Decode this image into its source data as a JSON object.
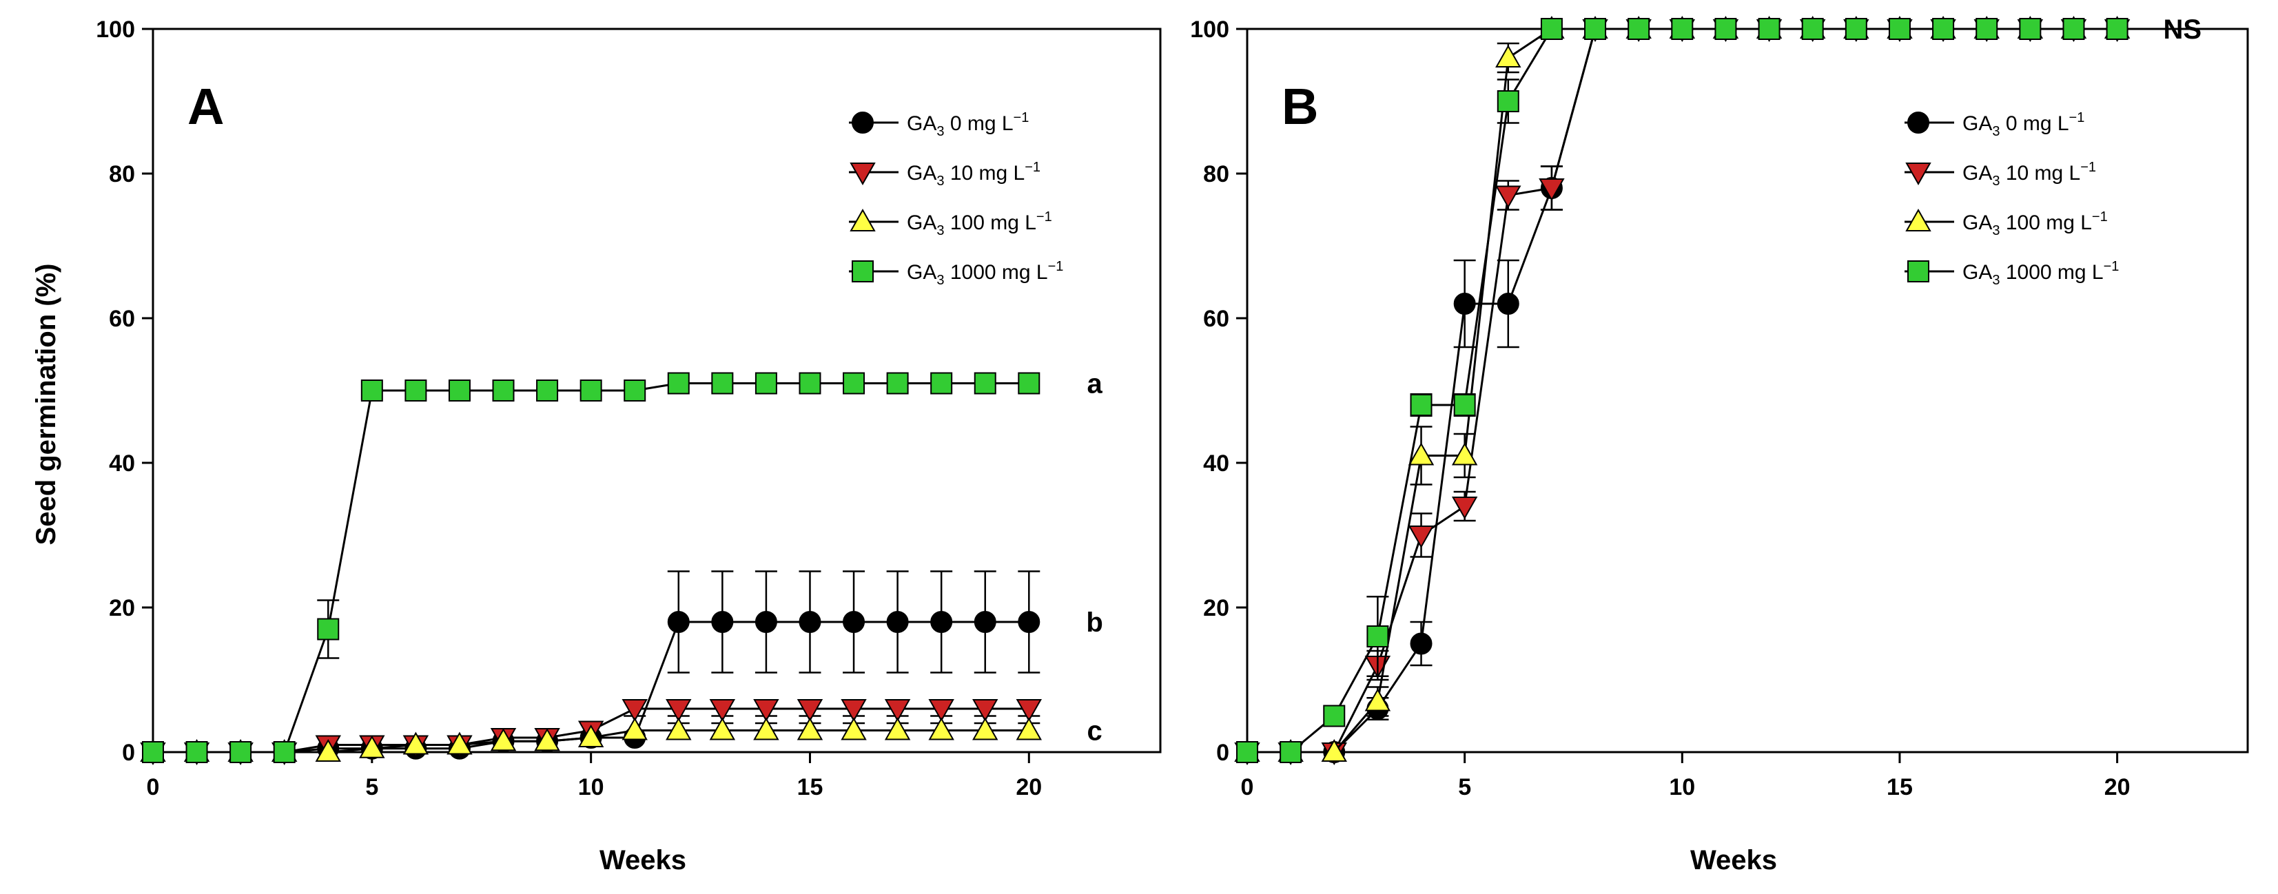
{
  "chart_data": [
    {
      "type": "line",
      "panel_label": "A",
      "xlabel": "Weeks",
      "ylabel": "Seed germination (%)",
      "xlim": [
        0,
        23
      ],
      "ylim": [
        0,
        100
      ],
      "xticks": [
        0,
        5,
        10,
        15,
        20
      ],
      "yticks": [
        0,
        20,
        40,
        60,
        80,
        100
      ],
      "x": [
        0,
        1,
        2,
        3,
        4,
        5,
        6,
        7,
        8,
        9,
        10,
        11,
        12,
        13,
        14,
        15,
        16,
        17,
        18,
        19,
        20
      ],
      "series": [
        {
          "name": "GA3 0",
          "legend": {
            "prefix": "GA",
            "sub": "3",
            "dose": "0 mg L",
            "sup": "−1"
          },
          "marker": "circle",
          "color": "#000000",
          "values": [
            0,
            0,
            0,
            0,
            0.5,
            0.5,
            0.5,
            0.5,
            1.5,
            1.5,
            2,
            2,
            18,
            18,
            18,
            18,
            18,
            18,
            18,
            18,
            18
          ],
          "errors": [
            0,
            0,
            0,
            0,
            0,
            0,
            0,
            0,
            0,
            0,
            0,
            0,
            7,
            7,
            7,
            7,
            7,
            7,
            7,
            7,
            7
          ]
        },
        {
          "name": "GA3 10",
          "legend": {
            "prefix": "GA",
            "sub": "3",
            "dose": "10 mg L",
            "sup": "−1"
          },
          "marker": "triangle-down",
          "color": "#cc2222",
          "values": [
            0,
            0,
            0,
            0,
            1,
            1,
            1,
            1,
            2,
            2,
            3,
            6,
            6,
            6,
            6,
            6,
            6,
            6,
            6,
            6,
            6
          ],
          "errors": [
            0,
            0,
            0,
            0,
            0,
            0,
            0,
            0,
            0,
            0,
            0,
            1,
            1,
            1,
            1,
            1,
            1,
            1,
            1,
            1,
            1
          ]
        },
        {
          "name": "GA3 100",
          "legend": {
            "prefix": "GA",
            "sub": "3",
            "dose": "100 mg L",
            "sup": "−1"
          },
          "marker": "triangle-up",
          "color": "#ffff44",
          "values": [
            0,
            0,
            0,
            0,
            0,
            0.5,
            1,
            1,
            1.5,
            1.5,
            2,
            3,
            3,
            3,
            3,
            3,
            3,
            3,
            3,
            3,
            3
          ],
          "errors": [
            0,
            0,
            0,
            0,
            0,
            0,
            0,
            0,
            0,
            0,
            0,
            0,
            1,
            1,
            1,
            1,
            1,
            1,
            1,
            1,
            1
          ]
        },
        {
          "name": "GA3 1000",
          "legend": {
            "prefix": "GA",
            "sub": "3",
            "dose": "1000 mg L",
            "sup": "−1"
          },
          "marker": "square",
          "color": "#33cc33",
          "values": [
            0,
            0,
            0,
            0,
            17,
            50,
            50,
            50,
            50,
            50,
            50,
            50,
            51,
            51,
            51,
            51,
            51,
            51,
            51,
            51,
            51
          ],
          "errors": [
            0,
            0,
            0,
            0,
            4,
            0,
            0,
            0,
            0,
            0,
            0,
            0,
            0,
            0,
            0,
            0,
            0,
            0,
            0,
            0,
            0
          ]
        }
      ],
      "annotations": [
        {
          "text": "a",
          "x": 21.5,
          "y": 51
        },
        {
          "text": "b",
          "x": 21.5,
          "y": 18
        },
        {
          "text": "c",
          "x": 21.5,
          "y": 3
        }
      ]
    },
    {
      "type": "line",
      "panel_label": "B",
      "xlabel": "Weeks",
      "ylabel": "",
      "xlim": [
        0,
        23
      ],
      "ylim": [
        0,
        100
      ],
      "xticks": [
        0,
        5,
        10,
        15,
        20
      ],
      "yticks": [
        0,
        20,
        40,
        60,
        80,
        100
      ],
      "x": [
        0,
        1,
        2,
        3,
        4,
        5,
        6,
        7,
        8,
        9,
        10,
        11,
        12,
        13,
        14,
        15,
        16,
        17,
        18,
        19,
        20
      ],
      "series": [
        {
          "name": "GA3 0",
          "legend": {
            "prefix": "GA",
            "sub": "3",
            "dose": "0 mg L",
            "sup": "−1"
          },
          "marker": "circle",
          "color": "#000000",
          "values": [
            0,
            0,
            0,
            6,
            15,
            62,
            62,
            78,
            100,
            100,
            100,
            100,
            100,
            100,
            100,
            100,
            100,
            100,
            100,
            100,
            100
          ],
          "errors": [
            0,
            0,
            0,
            1.5,
            3,
            6,
            6,
            3,
            0,
            0,
            0,
            0,
            0,
            0,
            0,
            0,
            0,
            0,
            0,
            0,
            0
          ]
        },
        {
          "name": "GA3 10",
          "legend": {
            "prefix": "GA",
            "sub": "3",
            "dose": "10 mg L",
            "sup": "−1"
          },
          "marker": "triangle-down",
          "color": "#cc2222",
          "values": [
            0,
            0,
            0,
            12,
            30,
            34,
            77,
            78,
            100,
            100,
            100,
            100,
            100,
            100,
            100,
            100,
            100,
            100,
            100,
            100,
            100
          ],
          "errors": [
            0,
            0,
            0,
            2,
            3,
            2,
            2,
            3,
            0,
            0,
            0,
            0,
            0,
            0,
            0,
            0,
            0,
            0,
            0,
            0,
            0
          ]
        },
        {
          "name": "GA3 100",
          "legend": {
            "prefix": "GA",
            "sub": "3",
            "dose": "100 mg L",
            "sup": "−1"
          },
          "marker": "triangle-up",
          "color": "#ffff44",
          "values": [
            0,
            0,
            0,
            7,
            41,
            41,
            96,
            100,
            100,
            100,
            100,
            100,
            100,
            100,
            100,
            100,
            100,
            100,
            100,
            100,
            100
          ],
          "errors": [
            0,
            0,
            0,
            2,
            4,
            3,
            2,
            0,
            0,
            0,
            0,
            0,
            0,
            0,
            0,
            0,
            0,
            0,
            0,
            0,
            0
          ]
        },
        {
          "name": "GA3 1000",
          "legend": {
            "prefix": "GA",
            "sub": "3",
            "dose": "1000 mg L",
            "sup": "−1"
          },
          "marker": "square",
          "color": "#33cc33",
          "values": [
            0,
            0,
            5,
            16,
            48,
            48,
            90,
            100,
            100,
            100,
            100,
            100,
            100,
            100,
            100,
            100,
            100,
            100,
            100,
            100,
            100
          ],
          "errors": [
            0,
            0,
            0,
            5.5,
            1.5,
            1.5,
            3,
            0,
            0,
            0,
            0,
            0,
            0,
            0,
            0,
            0,
            0,
            0,
            0,
            0,
            0
          ]
        }
      ],
      "annotations": [
        {
          "text": "NS",
          "x": 21.5,
          "y": 100
        }
      ]
    }
  ]
}
